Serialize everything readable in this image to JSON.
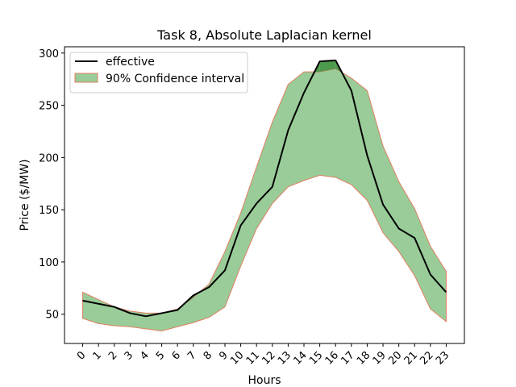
{
  "chart_data": {
    "type": "line",
    "title": "Task 8, Absolute Laplacian kernel",
    "xlabel": "Hours",
    "ylabel": "Price ($/MW)",
    "x": [
      0,
      1,
      2,
      3,
      4,
      5,
      6,
      7,
      8,
      9,
      10,
      11,
      12,
      13,
      14,
      15,
      16,
      17,
      18,
      19,
      20,
      21,
      22,
      23
    ],
    "xticks": [
      "0",
      "1",
      "2",
      "3",
      "4",
      "5",
      "6",
      "7",
      "8",
      "9",
      "10",
      "11",
      "12",
      "13",
      "14",
      "15",
      "16",
      "17",
      "18",
      "19",
      "20",
      "21",
      "22",
      "23"
    ],
    "yticks": [
      50,
      100,
      150,
      200,
      250,
      300
    ],
    "xlim": [
      -1.15,
      24.15
    ],
    "ylim": [
      22,
      306
    ],
    "grid": false,
    "legend_position": "top-left",
    "series": [
      {
        "name": "effective",
        "type": "line",
        "color": "#000000",
        "values": [
          63,
          60,
          57,
          51,
          48,
          51,
          54,
          68,
          76,
          92,
          135,
          156,
          172,
          226,
          262,
          292,
          293,
          264,
          202,
          155,
          132,
          123,
          88,
          71
        ]
      }
    ],
    "bands": [
      {
        "name": "90% Confidence interval",
        "fill": "#99cc99",
        "edge": "#e08060",
        "upper": [
          71,
          64,
          57,
          53,
          51,
          51,
          55,
          66,
          79,
          110,
          147,
          191,
          234,
          270,
          282,
          282,
          285,
          276,
          264,
          211,
          177,
          151,
          115,
          91
        ],
        "lower": [
          46,
          41,
          39,
          38,
          36,
          34,
          38,
          42,
          47,
          57,
          96,
          132,
          156,
          172,
          178,
          183,
          181,
          174,
          159,
          128,
          110,
          87,
          55,
          43
        ]
      }
    ],
    "overflow_fill": "#4d9a4d"
  }
}
